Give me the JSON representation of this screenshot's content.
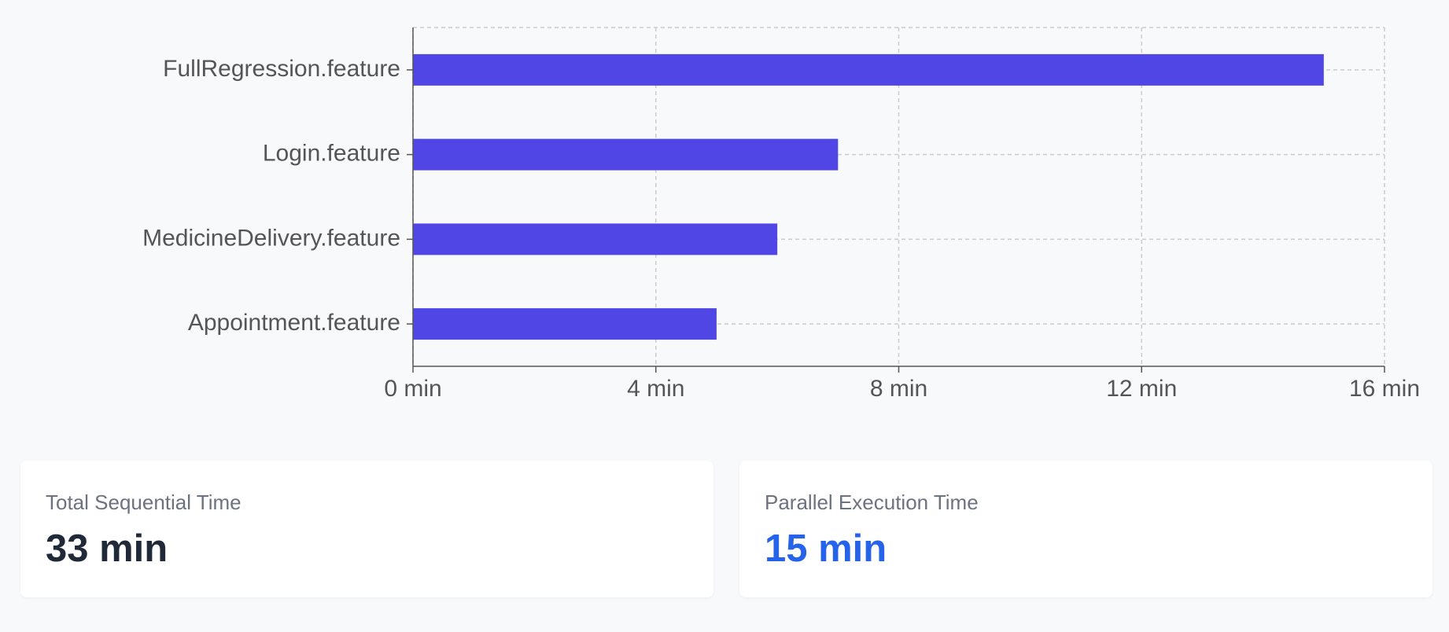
{
  "chart_data": {
    "type": "bar",
    "orientation": "horizontal",
    "categories": [
      "FullRegression.feature",
      "Login.feature",
      "MedicineDelivery.feature",
      "Appointment.feature"
    ],
    "values": [
      15,
      7,
      6,
      5
    ],
    "color": "#4f46e5",
    "xlim": [
      0,
      16
    ],
    "xticks": [
      {
        "value": 0,
        "label": "0 min"
      },
      {
        "value": 4,
        "label": "4 min"
      },
      {
        "value": 8,
        "label": "8 min"
      },
      {
        "value": 12,
        "label": "12 min"
      },
      {
        "value": 16,
        "label": "16 min"
      }
    ],
    "grid": true
  },
  "cards": [
    {
      "label": "Total Sequential Time",
      "value": "33 min",
      "color": "#1f2937"
    },
    {
      "label": "Parallel Execution Time",
      "value": "15 min",
      "color": "#2563eb"
    }
  ]
}
